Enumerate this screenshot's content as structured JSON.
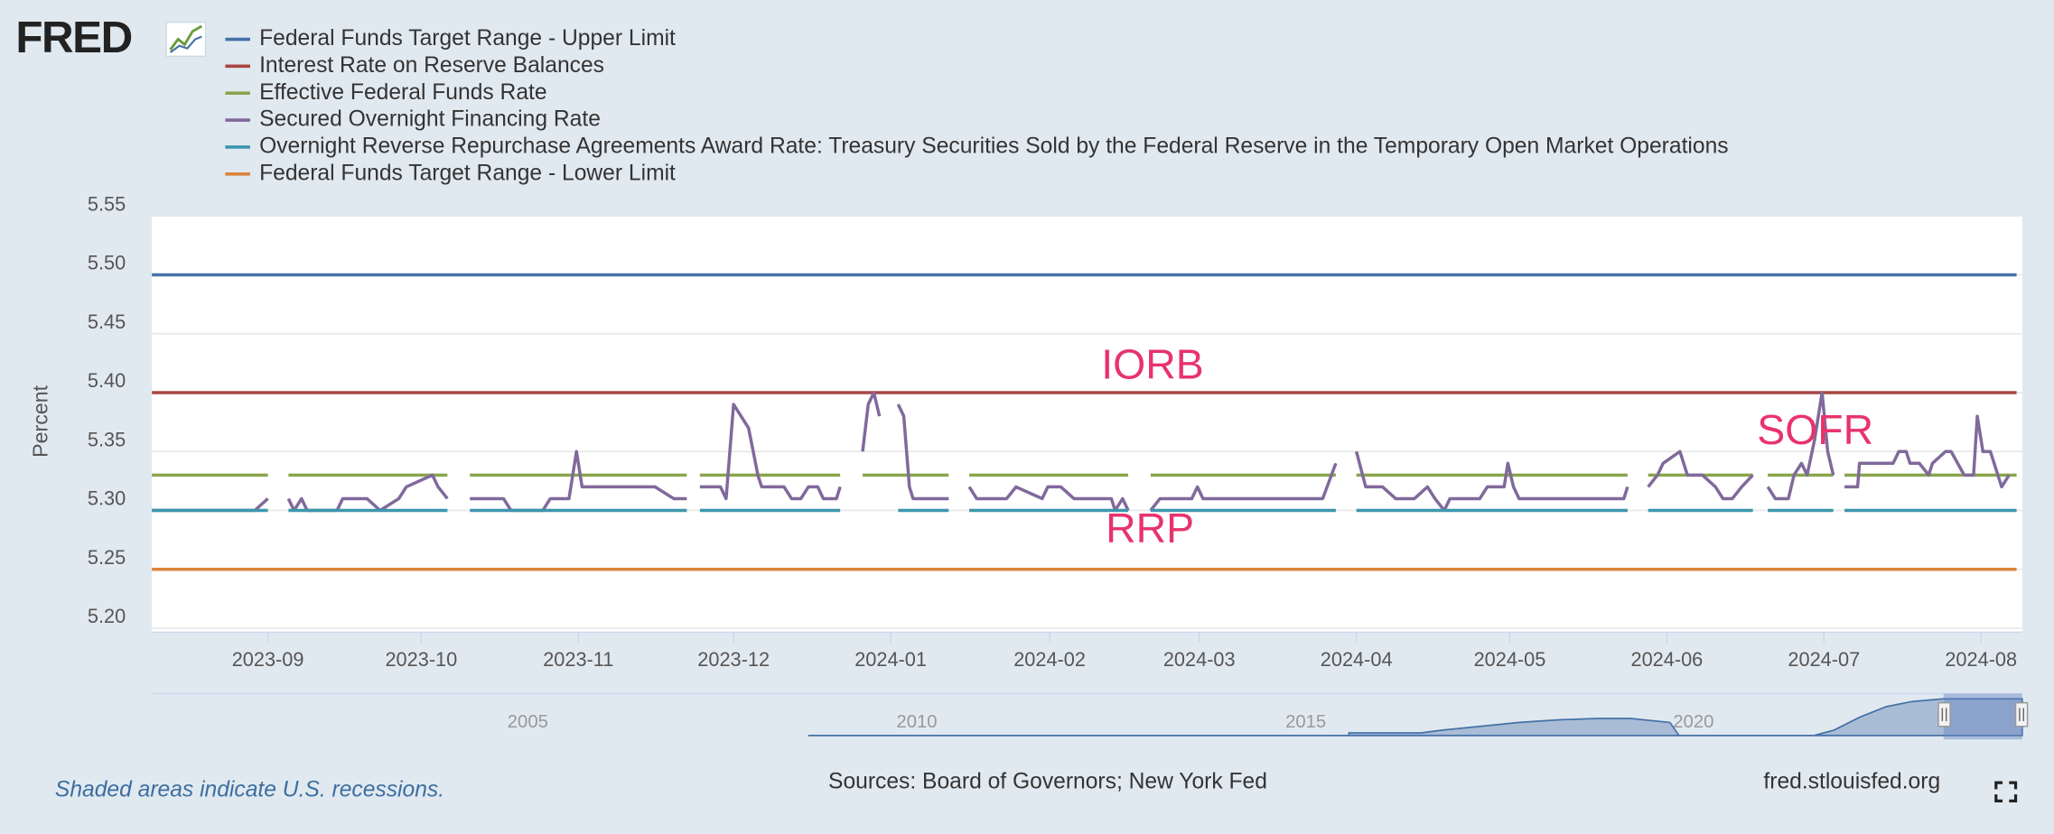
{
  "logo": "FRED",
  "chart_data": {
    "type": "line",
    "ylabel": "Percent",
    "grid": true,
    "legend": "top-left",
    "xlim": [
      2023.608,
      2024.608
    ],
    "ylim": [
      5.2,
      5.55
    ],
    "xticks": [
      {
        "value": 2023.67,
        "label": "2023-09"
      },
      {
        "value": 2023.752,
        "label": "2023-10"
      },
      {
        "value": 2023.836,
        "label": "2023-11"
      },
      {
        "value": 2023.919,
        "label": "2023-12"
      },
      {
        "value": 2024.003,
        "label": "2024-01"
      },
      {
        "value": 2024.088,
        "label": "2024-02"
      },
      {
        "value": 2024.168,
        "label": "2024-03"
      },
      {
        "value": 2024.252,
        "label": "2024-04"
      },
      {
        "value": 2024.334,
        "label": "2024-05"
      },
      {
        "value": 2024.418,
        "label": "2024-06"
      },
      {
        "value": 2024.502,
        "label": "2024-07"
      },
      {
        "value": 2024.586,
        "label": "2024-08"
      }
    ],
    "yticks": [
      {
        "value": 5.2,
        "label": "5.20"
      },
      5.25,
      {
        "value": 5.3,
        "label": "5.30"
      },
      5.35,
      {
        "value": 5.4,
        "label": "5.40"
      },
      5.45,
      {
        "value": 5.5,
        "label": "5.50"
      },
      5.55
    ],
    "annotations": [
      "IORB",
      "SOFR",
      "RRP"
    ],
    "series": [
      {
        "name": "Federal Funds Target Range - Upper Limit",
        "color": "#4572a7",
        "x": [
          2023.608,
          2024.605
        ],
        "values": [
          5.5,
          5.5
        ]
      },
      {
        "name": "Interest Rate on Reserve Balances",
        "color": "#aa4643",
        "x": [
          2023.608,
          2024.605
        ],
        "values": [
          5.4,
          5.4
        ]
      },
      {
        "name": "Effective Federal Funds Rate",
        "color": "#89a54e",
        "x": [
          2023.608,
          2023.67,
          2023.675,
          2023.681,
          2023.766,
          2023.772,
          2023.778,
          2023.894,
          2023.898,
          2023.901,
          2023.976,
          2023.981,
          2023.988,
          2024.034,
          2024.039,
          2024.045,
          2024.13,
          2024.136,
          2024.142,
          2024.241,
          2024.247,
          2024.252,
          2024.397,
          2024.402,
          2024.408,
          2024.464,
          2024.469,
          2024.472,
          2024.507,
          2024.509,
          2024.513,
          2024.605
        ],
        "values": [
          5.33,
          5.33,
          null,
          5.33,
          5.33,
          null,
          5.33,
          5.33,
          null,
          5.33,
          5.33,
          null,
          5.33,
          5.33,
          null,
          5.33,
          5.33,
          null,
          5.33,
          5.33,
          null,
          5.33,
          5.33,
          null,
          5.33,
          5.33,
          null,
          5.33,
          5.33,
          null,
          5.33,
          5.33
        ]
      },
      {
        "name": "Secured Overnight Financing Rate",
        "color": "#80699b",
        "x": [
          2023.608,
          2023.663,
          2023.67,
          2023.675,
          2023.681,
          2023.684,
          2023.688,
          2023.691,
          2023.707,
          2023.71,
          2023.723,
          2023.73,
          2023.74,
          2023.744,
          2023.758,
          2023.761,
          2023.766,
          2023.772,
          2023.778,
          2023.796,
          2023.8,
          2023.817,
          2023.821,
          2023.831,
          2023.835,
          2023.838,
          2023.877,
          2023.887,
          2023.894,
          2023.898,
          2023.901,
          2023.912,
          2023.915,
          2023.919,
          2023.927,
          2023.932,
          2023.934,
          2023.946,
          2023.95,
          2023.955,
          2023.959,
          2023.964,
          2023.967,
          2023.974,
          2023.976,
          2023.981,
          2023.988,
          2023.991,
          2023.994,
          2023.997,
          2024.001,
          2024.007,
          2024.01,
          2024.013,
          2024.015,
          2024.034,
          2024.039,
          2024.045,
          2024.049,
          2024.065,
          2024.07,
          2024.084,
          2024.087,
          2024.094,
          2024.101,
          2024.121,
          2024.123,
          2024.127,
          2024.13,
          2024.136,
          2024.142,
          2024.147,
          2024.164,
          2024.167,
          2024.17,
          2024.234,
          2024.241,
          2024.247,
          2024.252,
          2024.257,
          2024.266,
          2024.273,
          2024.283,
          2024.29,
          2024.294,
          2024.299,
          2024.302,
          2024.318,
          2024.322,
          2024.331,
          2024.333,
          2024.336,
          2024.339,
          2024.395,
          2024.397,
          2024.402,
          2024.408,
          2024.413,
          2024.416,
          2024.425,
          2024.429,
          2024.437,
          2024.444,
          2024.448,
          2024.453,
          2024.458,
          2024.464,
          2024.469,
          2024.472,
          2024.476,
          2024.483,
          2024.486,
          2024.49,
          2024.493,
          2024.497,
          2024.501,
          2024.504,
          2024.507,
          2024.509,
          2024.513,
          2024.52,
          2024.521,
          2024.539,
          2024.542,
          2024.546,
          2024.548,
          2024.553,
          2024.558,
          2024.56,
          2024.567,
          2024.57,
          2024.577,
          2024.582,
          2024.584,
          2024.587,
          2024.591,
          2024.595,
          2024.597,
          2024.601
        ],
        "values": [
          5.3,
          5.3,
          5.31,
          null,
          5.31,
          5.3,
          5.31,
          5.3,
          5.3,
          5.31,
          5.31,
          5.3,
          5.31,
          5.32,
          5.33,
          5.32,
          5.31,
          null,
          5.31,
          5.31,
          5.3,
          5.3,
          5.31,
          5.31,
          5.35,
          5.32,
          5.32,
          5.31,
          5.31,
          null,
          5.32,
          5.32,
          5.31,
          5.39,
          5.37,
          5.33,
          5.32,
          5.32,
          5.31,
          5.31,
          5.32,
          5.32,
          5.31,
          5.31,
          5.32,
          null,
          5.35,
          5.39,
          5.4,
          5.38,
          null,
          5.39,
          5.38,
          5.32,
          5.31,
          5.31,
          null,
          5.32,
          5.31,
          5.31,
          5.32,
          5.31,
          5.32,
          5.32,
          5.31,
          5.31,
          5.3,
          5.31,
          5.3,
          null,
          5.3,
          5.31,
          5.31,
          5.32,
          5.31,
          5.31,
          5.34,
          null,
          5.35,
          5.32,
          5.32,
          5.31,
          5.31,
          5.32,
          5.31,
          5.3,
          5.31,
          5.31,
          5.32,
          5.32,
          5.34,
          5.32,
          5.31,
          5.31,
          5.32,
          null,
          5.32,
          5.33,
          5.34,
          5.35,
          5.33,
          5.33,
          5.32,
          5.31,
          5.31,
          5.32,
          5.33,
          null,
          5.32,
          5.31,
          5.31,
          5.33,
          5.34,
          5.33,
          5.36,
          5.4,
          5.35,
          5.33,
          null,
          5.32,
          5.32,
          5.34,
          5.34,
          5.35,
          5.35,
          5.34,
          5.34,
          5.33,
          5.34,
          5.35,
          5.35,
          5.33,
          5.33,
          5.38,
          5.35,
          5.35,
          5.33,
          5.32,
          5.33
        ]
      },
      {
        "name": "Overnight Reverse Repurchase Agreements Award Rate: Treasury Securities Sold by the Federal Reserve in the Temporary Open Market Operations",
        "color": "#3d96ae",
        "x": [
          2023.608,
          2023.67,
          2023.675,
          2023.681,
          2023.766,
          2023.772,
          2023.778,
          2023.894,
          2023.898,
          2023.901,
          2023.976,
          2023.981,
          2024.007,
          2024.034,
          2024.039,
          2024.045,
          2024.13,
          2024.136,
          2024.142,
          2024.241,
          2024.247,
          2024.252,
          2024.397,
          2024.402,
          2024.408,
          2024.464,
          2024.469,
          2024.472,
          2024.507,
          2024.509,
          2024.513,
          2024.605
        ],
        "values": [
          5.3,
          5.3,
          null,
          5.3,
          5.3,
          null,
          5.3,
          5.3,
          null,
          5.3,
          5.3,
          null,
          5.3,
          5.3,
          null,
          5.3,
          5.3,
          null,
          5.3,
          5.3,
          null,
          5.3,
          5.3,
          null,
          5.3,
          5.3,
          null,
          5.3,
          5.3,
          null,
          5.3,
          5.3
        ]
      },
      {
        "name": "Federal Funds Target Range - Lower Limit",
        "color": "#db843d",
        "x": [
          2023.608,
          2024.605
        ],
        "values": [
          5.25,
          5.25
        ]
      }
    ]
  },
  "navigator": {
    "labels": [
      "2005",
      "2010",
      "2015",
      "2020"
    ]
  },
  "footer": {
    "note": "Shaded areas indicate U.S. recessions.",
    "sources": "Sources: Board of Governors; New York Fed",
    "site": "fred.stlouisfed.org"
  }
}
